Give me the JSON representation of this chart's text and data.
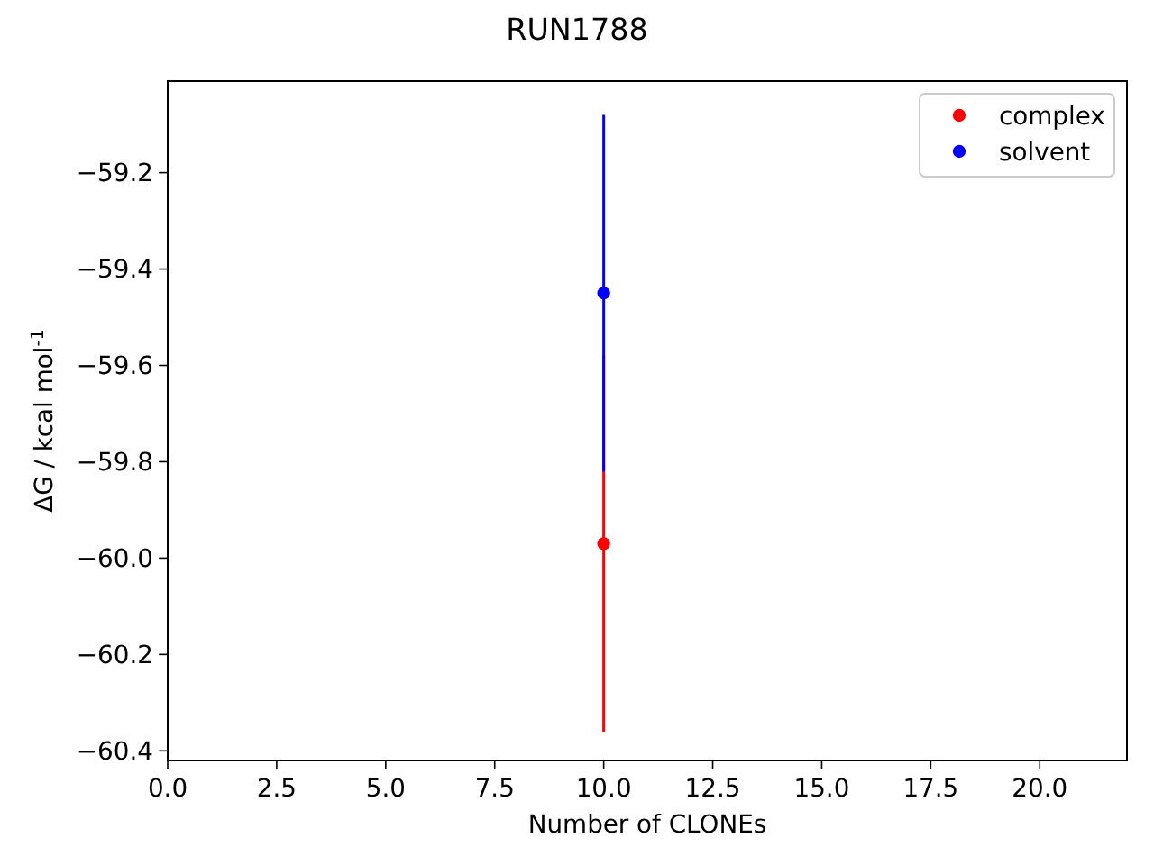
{
  "chart_data": {
    "type": "scatter",
    "title": "RUN1788",
    "xlabel": "Number of CLONEs",
    "ylabel": "ΔG / kcal mol$^{-1}$",
    "xlim": [
      0,
      22
    ],
    "xticks": [
      {
        "value": 0,
        "label": "0.0"
      },
      {
        "value": 2.5,
        "label": "2.5"
      },
      {
        "value": 5,
        "label": "5.0"
      },
      {
        "value": 7.5,
        "label": "7.5"
      },
      {
        "value": 10,
        "label": "10.0"
      },
      {
        "value": 12.5,
        "label": "12.5"
      },
      {
        "value": 15,
        "label": "15.0"
      },
      {
        "value": 17.5,
        "label": "17.5"
      },
      {
        "value": 20,
        "label": "20.0"
      }
    ],
    "ylim": [
      -60.42,
      -59.01
    ],
    "yticks": [
      {
        "value": -60.4,
        "label": "−60.4"
      },
      {
        "value": -60.2,
        "label": "−60.2"
      },
      {
        "value": -60.0,
        "label": "−60.0"
      },
      {
        "value": -59.8,
        "label": "−59.8"
      },
      {
        "value": -59.6,
        "label": "−59.6"
      },
      {
        "value": -59.4,
        "label": "−59.4"
      },
      {
        "value": -59.2,
        "label": "−59.2"
      }
    ],
    "series": [
      {
        "name": "complex",
        "color": "#ff0000",
        "x": [
          10
        ],
        "values": [
          -59.97
        ],
        "errors": [
          0.39
        ]
      },
      {
        "name": "solvent",
        "color": "#0000ff",
        "x": [
          10
        ],
        "values": [
          -59.45
        ],
        "errors": [
          0.37
        ]
      }
    ],
    "marker": "circle",
    "legend": "top right",
    "grid": false
  }
}
